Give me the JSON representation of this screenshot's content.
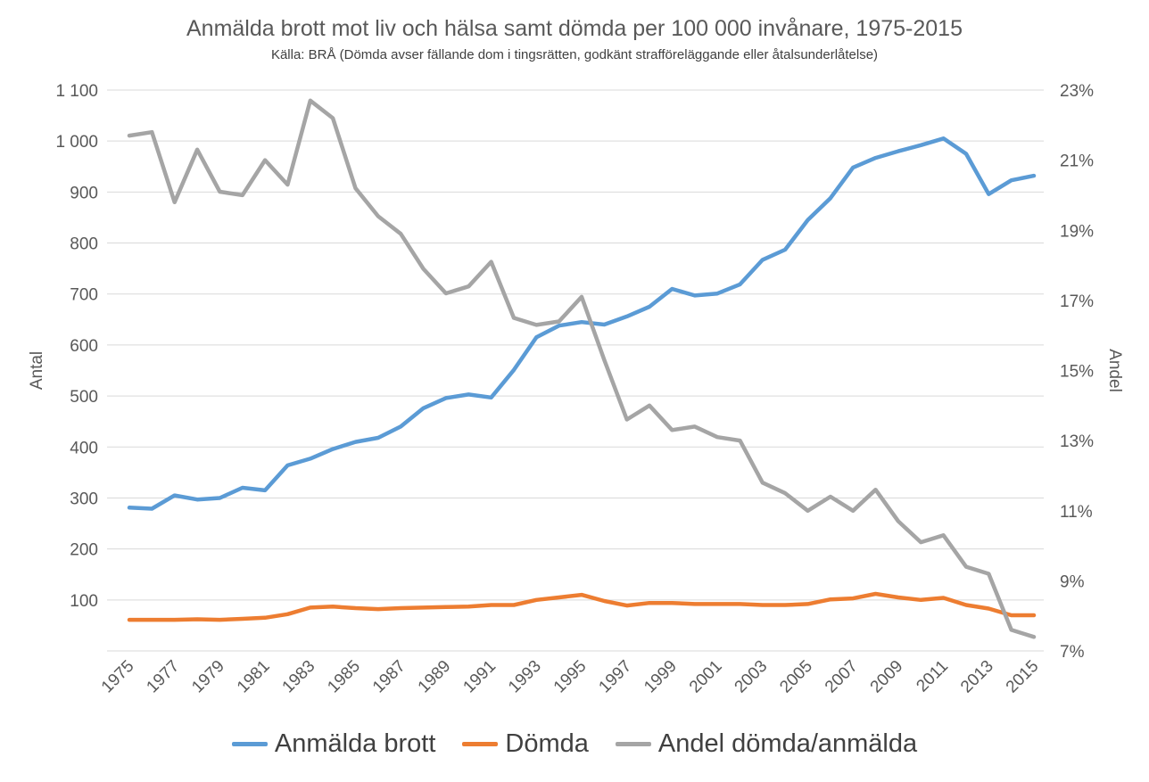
{
  "chart_data": {
    "type": "line",
    "title": "Anmälda brott mot liv och hälsa samt dömda per 100 000 invånare, 1975-2015",
    "subtitle": "Källa: BRÅ (Dömda avser fällande dom i tingsrätten, godkänt strafföreläggande eller åtalsunderlåtelse)",
    "ylabel": "Antal",
    "y2label": "Andel",
    "ylim": [
      0,
      1100
    ],
    "y2lim": [
      0.07,
      0.23
    ],
    "yticks": [
      "",
      "100",
      "200",
      "300",
      "400",
      "500",
      "600",
      "700",
      "800",
      "900",
      "1 000",
      "1 100"
    ],
    "y2ticks": [
      "7%",
      "9%",
      "11%",
      "13%",
      "15%",
      "17%",
      "19%",
      "21%",
      "23%"
    ],
    "xticks": [
      "1975",
      "1977",
      "1979",
      "1981",
      "1983",
      "1985",
      "1987",
      "1989",
      "1991",
      "1993",
      "1995",
      "1997",
      "1999",
      "2001",
      "2003",
      "2005",
      "2007",
      "2009",
      "2011",
      "2013",
      "2015"
    ],
    "x": [
      1975,
      1976,
      1977,
      1978,
      1979,
      1980,
      1981,
      1982,
      1983,
      1984,
      1985,
      1986,
      1987,
      1988,
      1989,
      1990,
      1991,
      1992,
      1993,
      1994,
      1995,
      1996,
      1997,
      1998,
      1999,
      2000,
      2001,
      2002,
      2003,
      2004,
      2005,
      2006,
      2007,
      2008,
      2009,
      2010,
      2011,
      2012,
      2013,
      2014,
      2015
    ],
    "legend_position": "bottom",
    "grid": true,
    "series": [
      {
        "name": "Anmälda brott",
        "axis": "left",
        "color": "#5B9BD5",
        "values": [
          281,
          279,
          305,
          297,
          300,
          320,
          315,
          364,
          377,
          396,
          410,
          418,
          440,
          476,
          496,
          503,
          497,
          551,
          615,
          638,
          645,
          640,
          656,
          675,
          710,
          697,
          701,
          719,
          767,
          787,
          845,
          888,
          948,
          967,
          980,
          992,
          1005,
          975,
          896,
          923,
          932
        ]
      },
      {
        "name": "Dömda",
        "axis": "left",
        "color": "#ED7D31",
        "values": [
          61,
          61,
          61,
          62,
          61,
          63,
          65,
          72,
          85,
          87,
          84,
          82,
          84,
          85,
          86,
          87,
          90,
          90,
          100,
          105,
          110,
          98,
          89,
          94,
          94,
          92,
          92,
          92,
          90,
          90,
          92,
          101,
          103,
          112,
          105,
          100,
          104,
          90,
          83,
          70,
          70
        ]
      },
      {
        "name": "Andel dömda/anmälda",
        "axis": "right",
        "color": "#A5A5A5",
        "values": [
          0.217,
          0.218,
          0.198,
          0.213,
          0.201,
          0.2,
          0.21,
          0.203,
          0.227,
          0.222,
          0.202,
          0.194,
          0.189,
          0.179,
          0.172,
          0.174,
          0.181,
          0.165,
          0.163,
          0.164,
          0.171,
          0.153,
          0.136,
          0.14,
          0.133,
          0.134,
          0.131,
          0.13,
          0.118,
          0.115,
          0.11,
          0.114,
          0.11,
          0.116,
          0.107,
          0.101,
          0.103,
          0.094,
          0.092,
          0.076,
          0.074
        ]
      }
    ]
  }
}
